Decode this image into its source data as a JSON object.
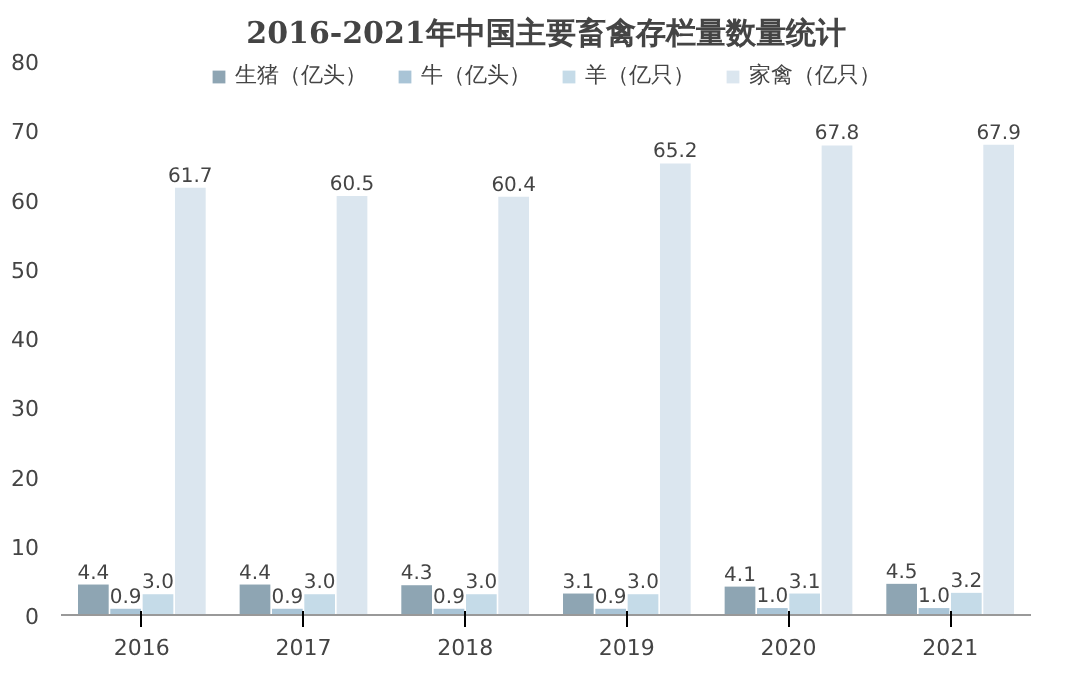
{
  "chart_data": {
    "type": "bar",
    "title": "2016-2021年中国主要畜禽存栏量数量统计",
    "categories": [
      "2016",
      "2017",
      "2018",
      "2019",
      "2020",
      "2021"
    ],
    "series": [
      {
        "name": "生猪（亿头）",
        "color": "#8ea5b3",
        "values": [
          4.4,
          4.4,
          4.3,
          3.1,
          4.1,
          4.5
        ],
        "value_labels": [
          "4.4",
          "4.4",
          "4.3",
          "3.1",
          "4.1",
          "4.5"
        ]
      },
      {
        "name": "牛（亿头）",
        "color": "#a9c4d6",
        "values": [
          0.9,
          0.9,
          0.9,
          0.9,
          1.0,
          1.0
        ],
        "value_labels": [
          "0.9",
          "0.9",
          "0.9",
          "0.9",
          "1.0",
          "1.0"
        ]
      },
      {
        "name": "羊（亿只）",
        "color": "#c5dbe8",
        "values": [
          3.0,
          3.0,
          3.0,
          3.0,
          3.1,
          3.2
        ],
        "value_labels": [
          "3.0",
          "3.0",
          "3.0",
          "3.0",
          "3.1",
          "3.2"
        ]
      },
      {
        "name": "家禽（亿只）",
        "color": "#dbe6ef",
        "values": [
          61.7,
          60.5,
          60.4,
          65.2,
          67.8,
          67.9
        ],
        "value_labels": [
          "61.7",
          "60.5",
          "60.4",
          "65.2",
          "67.8",
          "67.9"
        ]
      }
    ],
    "ylim": [
      0,
      80
    ],
    "yticks": [
      0,
      10,
      20,
      30,
      40,
      50,
      60,
      70,
      80
    ],
    "legend": "top",
    "grid": false
  }
}
